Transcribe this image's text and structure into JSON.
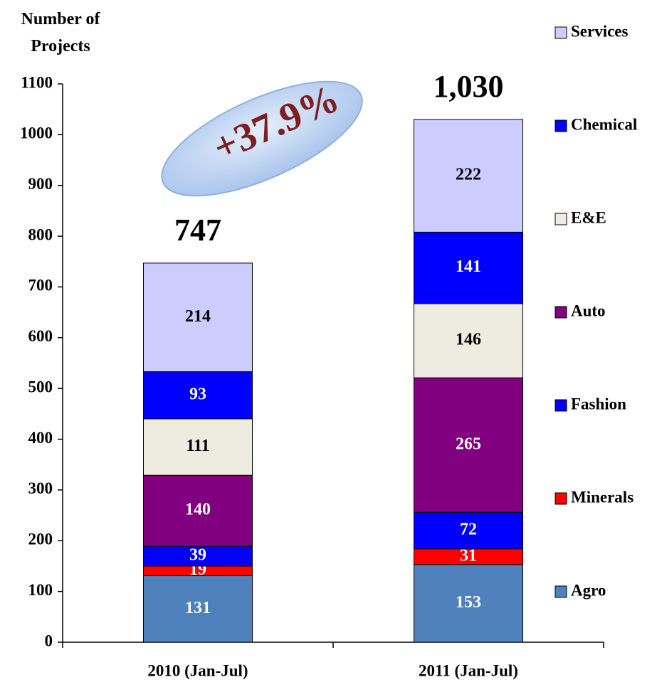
{
  "chart_data": {
    "type": "stacked_bar",
    "y_label": "Number of Projects",
    "annotation": "+37.9%",
    "categories": [
      "2010 (Jan-Jul)",
      "2011 (Jan-Jul)"
    ],
    "series": [
      {
        "name": "Agro",
        "color": "#4f81bd",
        "label_color": "#ffffff",
        "values": [
          131,
          153
        ]
      },
      {
        "name": "Minerals",
        "color": "#ff0000",
        "label_color": "#ffffff",
        "values": [
          19,
          31
        ]
      },
      {
        "name": "Fashion",
        "color": "#0000ff",
        "label_color": "#ffffff",
        "values": [
          39,
          72
        ]
      },
      {
        "name": "Auto",
        "color": "#800080",
        "label_color": "#ffffff",
        "values": [
          140,
          265
        ]
      },
      {
        "name": "E&E",
        "color": "#eeece1",
        "label_color": "#000000",
        "values": [
          111,
          146
        ]
      },
      {
        "name": "Chemical",
        "color": "#0000ff",
        "label_color": "#ffffff",
        "values": [
          93,
          141
        ]
      },
      {
        "name": "Services",
        "color": "#ccccff",
        "label_color": "#000000",
        "values": [
          214,
          222
        ]
      }
    ],
    "totals": [
      747,
      1030
    ],
    "total_labels": [
      "747",
      "1,030"
    ],
    "ylim": [
      0,
      1100
    ],
    "yticks": [
      0,
      100,
      200,
      300,
      400,
      500,
      600,
      700,
      800,
      900,
      1000,
      1100
    ]
  }
}
